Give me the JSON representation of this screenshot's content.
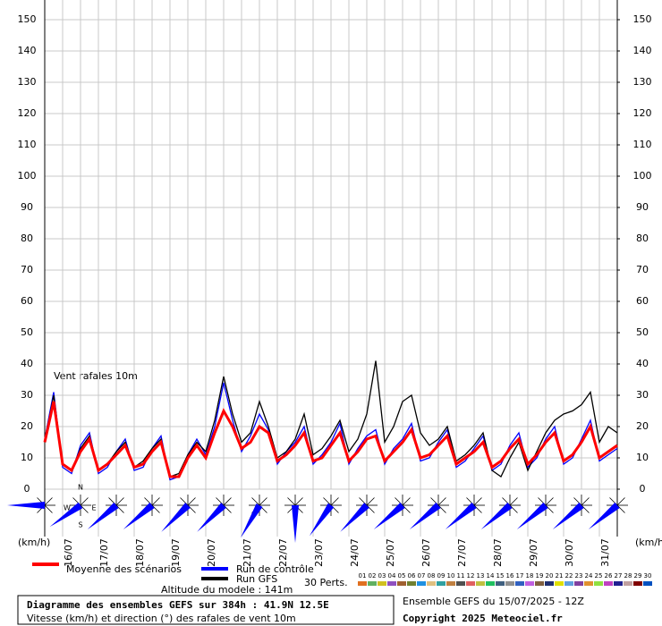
{
  "chart_data": {
    "type": "line",
    "annotation": "Vent rafales 10m",
    "y_unit_label": "(km/h)",
    "y2_unit_label": "(km/h)",
    "xlim": [
      0,
      384
    ],
    "step_hours": 6,
    "xticks": [
      {
        "value": 12,
        "label": "16/07"
      },
      {
        "value": 36,
        "label": "17/07"
      },
      {
        "value": 60,
        "label": "18/07"
      },
      {
        "value": 84,
        "label": "19/07"
      },
      {
        "value": 108,
        "label": "20/07"
      },
      {
        "value": 132,
        "label": "21/07"
      },
      {
        "value": 156,
        "label": "22/07"
      },
      {
        "value": 180,
        "label": "23/07"
      },
      {
        "value": 204,
        "label": "24/07"
      },
      {
        "value": 228,
        "label": "25/07"
      },
      {
        "value": 252,
        "label": "26/07"
      },
      {
        "value": 276,
        "label": "27/07"
      },
      {
        "value": 300,
        "label": "28/07"
      },
      {
        "value": 324,
        "label": "29/07"
      },
      {
        "value": 348,
        "label": "30/07"
      },
      {
        "value": 372,
        "label": "31/07"
      }
    ],
    "ylim": [
      0,
      150
    ],
    "yticks": [
      0,
      10,
      20,
      30,
      40,
      50,
      60,
      70,
      80,
      90,
      100,
      110,
      120,
      130,
      140,
      150
    ],
    "y2lim": [
      0,
      150
    ],
    "y2ticks": [
      0,
      10,
      20,
      30,
      40,
      50,
      60,
      70,
      80,
      90,
      100,
      110,
      120,
      130,
      140,
      150
    ],
    "grid": true,
    "series": [
      {
        "name": "Run de contrôle",
        "color": "#0000ff",
        "values": [
          16,
          31,
          7,
          5,
          14,
          18,
          5,
          7,
          12,
          16,
          6,
          7,
          13,
          17,
          3,
          4,
          11,
          16,
          11,
          20,
          34,
          22,
          12,
          17,
          24,
          19,
          8,
          12,
          15,
          20,
          8,
          11,
          15,
          21,
          8,
          13,
          17,
          19,
          8,
          13,
          16,
          21,
          9,
          10,
          15,
          19,
          7,
          9,
          13,
          17,
          6,
          8,
          14,
          18,
          7,
          10,
          16,
          20,
          8,
          10,
          16,
          22,
          9,
          11,
          13
        ]
      },
      {
        "name": "Run GFS",
        "color": "#000000",
        "values": [
          15,
          30,
          8,
          6,
          13,
          17,
          6,
          8,
          12,
          15,
          7,
          9,
          13,
          16,
          4,
          5,
          11,
          15,
          12,
          22,
          36,
          24,
          15,
          18,
          28,
          20,
          10,
          12,
          16,
          24,
          11,
          13,
          17,
          22,
          12,
          16,
          24,
          41,
          15,
          20,
          28,
          30,
          18,
          14,
          16,
          20,
          9,
          11,
          14,
          18,
          6,
          4,
          10,
          15,
          6,
          12,
          18,
          22,
          24,
          25,
          27,
          31,
          15,
          20,
          18
        ]
      },
      {
        "name": "Moyenne des scénarios",
        "color": "#ff0000",
        "values": [
          15,
          28,
          8,
          6,
          12,
          16,
          6,
          8,
          11,
          14,
          7,
          8,
          12,
          15,
          4,
          4,
          10,
          14,
          10,
          18,
          25,
          20,
          13,
          15,
          20,
          18,
          9,
          11,
          14,
          18,
          9,
          10,
          14,
          18,
          9,
          12,
          16,
          17,
          9,
          12,
          15,
          19,
          10,
          11,
          14,
          17,
          8,
          10,
          12,
          15,
          7,
          9,
          13,
          16,
          8,
          11,
          15,
          18,
          9,
          11,
          15,
          20,
          10,
          12,
          14
        ]
      }
    ],
    "perturbations_label": "30 Perts.",
    "perturbations": [
      {
        "name": "01",
        "color": "#e07020"
      },
      {
        "name": "02",
        "color": "#60b060"
      },
      {
        "name": "03",
        "color": "#d0c020"
      },
      {
        "name": "04",
        "color": "#9050c0"
      },
      {
        "name": "05",
        "color": "#a06030"
      },
      {
        "name": "06",
        "color": "#708030"
      },
      {
        "name": "07",
        "color": "#2090e0"
      },
      {
        "name": "08",
        "color": "#e0c080"
      },
      {
        "name": "09",
        "color": "#30a0a0"
      },
      {
        "name": "10",
        "color": "#c08040"
      },
      {
        "name": "11",
        "color": "#505050"
      },
      {
        "name": "12",
        "color": "#e06060"
      },
      {
        "name": "13",
        "color": "#c0c040"
      },
      {
        "name": "14",
        "color": "#20c060"
      },
      {
        "name": "15",
        "color": "#406080"
      },
      {
        "name": "16",
        "color": "#909090"
      },
      {
        "name": "17",
        "color": "#3060c0"
      },
      {
        "name": "18",
        "color": "#c060e0"
      },
      {
        "name": "19",
        "color": "#806040"
      },
      {
        "name": "20",
        "color": "#203070"
      },
      {
        "name": "21",
        "color": "#e0e000"
      },
      {
        "name": "22",
        "color": "#60a0e0"
      },
      {
        "name": "23",
        "color": "#8040a0"
      },
      {
        "name": "24",
        "color": "#e09030"
      },
      {
        "name": "25",
        "color": "#90e040"
      },
      {
        "name": "26",
        "color": "#c040c0"
      },
      {
        "name": "27",
        "color": "#202090"
      },
      {
        "name": "28",
        "color": "#c0a0a0"
      },
      {
        "name": "29",
        "color": "#800000"
      },
      {
        "name": "30",
        "color": "#0050c0"
      }
    ],
    "wind_rose": {
      "compass": [
        "N",
        "W",
        "E",
        "S"
      ],
      "color": "#0000ff",
      "directions": [
        270,
        235,
        230,
        230,
        225,
        225,
        210,
        180,
        215,
        225,
        230,
        230,
        230,
        230,
        230,
        230,
        230
      ]
    },
    "altitude": "Altitude du modele : 141m",
    "box_title": "Diagramme des ensembles GEFS sur 384h : 41.9N 12.5E",
    "box_subtitle": "Vitesse (km/h) et direction (°) des rafales de vent 10m",
    "run_info": "Ensemble GEFS du 15/07/2025 - 12Z",
    "copyright": "Copyright 2025 Meteociel.fr"
  }
}
